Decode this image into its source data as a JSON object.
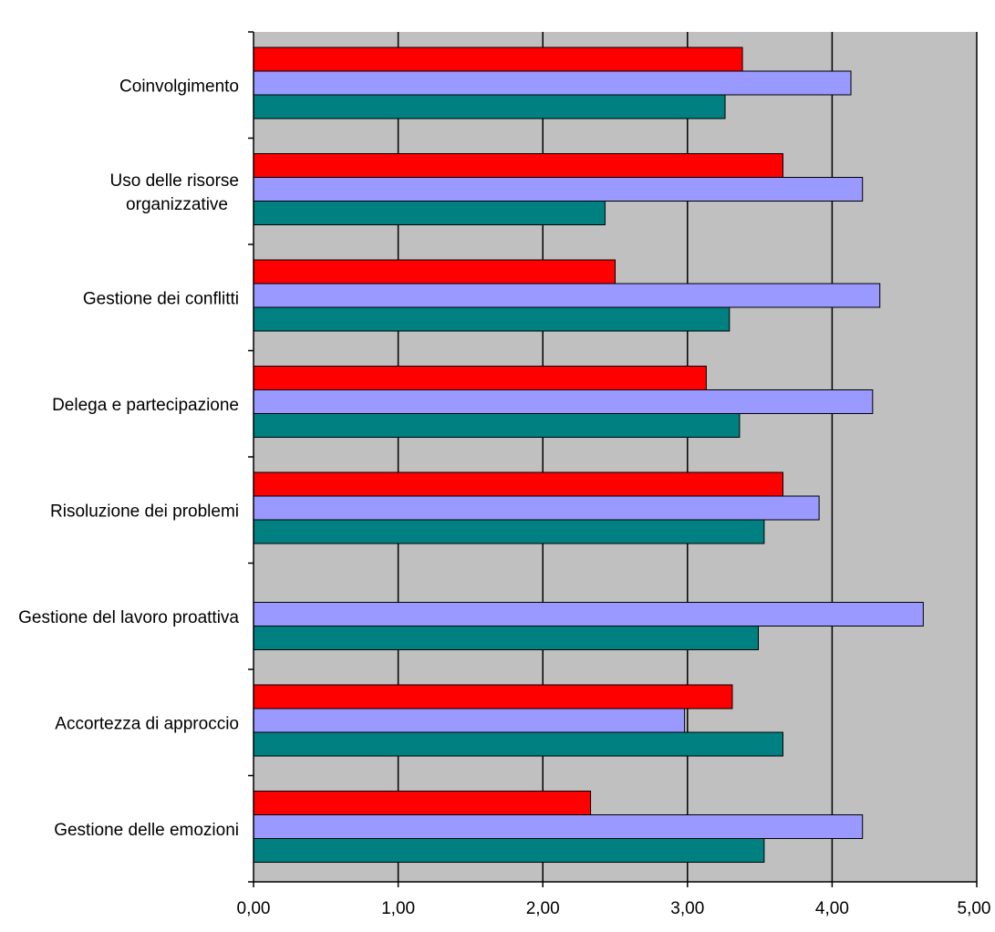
{
  "chart_data": {
    "type": "bar",
    "orientation": "horizontal",
    "title": "",
    "xlabel": "",
    "ylabel": "",
    "xlim": [
      0,
      5
    ],
    "grid": true,
    "legend": "none",
    "background_color": "#c0c0c0",
    "categories": [
      [
        "Coinvolgimento"
      ],
      [
        "Uso delle risorse",
        "organizzative"
      ],
      [
        "Gestione dei conflitti"
      ],
      [
        "Delega e partecipazione"
      ],
      [
        "Risoluzione dei problemi"
      ],
      [
        "Gestione del lavoro proattiva"
      ],
      [
        "Accortezza di approccio"
      ],
      [
        "Gestione delle emozioni"
      ]
    ],
    "x_ticks": [
      "0,00",
      "1,00",
      "2,00",
      "3,00",
      "4,00",
      "5,00"
    ],
    "series": [
      {
        "color": "#ff0000",
        "values": [
          3.38,
          3.66,
          2.5,
          3.13,
          3.66,
          0,
          3.31,
          2.33
        ]
      },
      {
        "color": "#9999ff",
        "values": [
          4.13,
          4.21,
          4.33,
          4.28,
          3.91,
          4.63,
          2.98,
          4.21
        ]
      },
      {
        "color": "#008080",
        "values": [
          3.26,
          2.43,
          3.29,
          3.36,
          3.53,
          3.49,
          3.66,
          3.53
        ]
      }
    ]
  }
}
